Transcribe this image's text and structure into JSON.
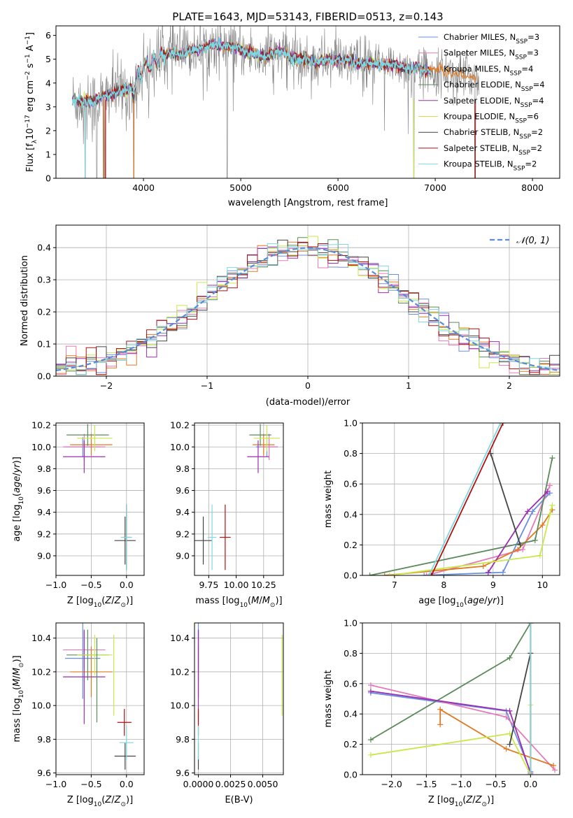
{
  "colors": {
    "Chabrier MILES": "#6a8fe0",
    "Salpeter MILES": "#e47ab8",
    "Kroupa MILES": "#e0781e",
    "Chabrier ELODIE": "#5a8a5a",
    "Salpeter ELODIE": "#9a2fb0",
    "Kroupa ELODIE": "#c8e84a",
    "Chabrier STELIB": "#444444",
    "Salpeter STELIB": "#b01010",
    "Kroupa STELIB": "#7ed8e0",
    "gaussian": "#5a8ad8",
    "grid": "#b0b0b0",
    "axis": "#000000"
  },
  "chart_data": [
    {
      "id": "spectrum",
      "type": "line",
      "title": "PLATE=1643, MJD=53143, FIBERID=0513, z=0.143",
      "xlabel": "wavelength [Angstrom, rest frame]",
      "ylabel": "Flux [fλ10⁻¹⁷ erg cm⁻² s⁻¹ A⁻¹]",
      "xlim": [
        3100,
        8280
      ],
      "ylim": [
        0,
        6.4
      ],
      "xticks": [
        4000,
        5000,
        6000,
        7000,
        8000
      ],
      "yticks": [
        0,
        1,
        2,
        3,
        4,
        5,
        6
      ],
      "grid": false,
      "legend_position": "top-right",
      "legend": [
        {
          "name": "Chabrier MILES, N_SSP=3",
          "label_main": "Chabrier MILES, N",
          "sub": "SSP",
          "suffix": "=3",
          "model": "Chabrier MILES"
        },
        {
          "name": "Salpeter MILES, N_SSP=3",
          "label_main": "Salpeter MILES, N",
          "sub": "SSP",
          "suffix": "=3",
          "model": "Salpeter MILES"
        },
        {
          "name": "Kroupa MILES, N_SSP=4",
          "label_main": "Kroupa MILES, N",
          "sub": "SSP",
          "suffix": "=4",
          "model": "Kroupa MILES"
        },
        {
          "name": "Chabrier ELODIE, N_SSP=4",
          "label_main": "Chabrier ELODIE, N",
          "sub": "SSP",
          "suffix": "=4",
          "model": "Chabrier ELODIE"
        },
        {
          "name": "Salpeter ELODIE, N_SSP=4",
          "label_main": "Salpeter ELODIE, N",
          "sub": "SSP",
          "suffix": "=4",
          "model": "Salpeter ELODIE"
        },
        {
          "name": "Kroupa ELODIE, N_SSP=6",
          "label_main": "Kroupa ELODIE, N",
          "sub": "SSP",
          "suffix": "=6",
          "model": "Kroupa ELODIE"
        },
        {
          "name": "Chabrier STELIB, N_SSP=2",
          "label_main": "Chabrier STELIB, N",
          "sub": "SSP",
          "suffix": "=2",
          "model": "Chabrier STELIB"
        },
        {
          "name": "Salpeter STELIB, N_SSP=2",
          "label_main": "Salpeter STELIB, N",
          "sub": "SSP",
          "suffix": "=2",
          "model": "Salpeter STELIB"
        },
        {
          "name": "Kroupa STELIB, N_SSP=2",
          "label_main": "Kroupa STELIB, N",
          "sub": "SSP",
          "suffix": "=2",
          "model": "Kroupa STELIB"
        }
      ],
      "continuum_points": {
        "x": [
          3270,
          3330,
          3400,
          3500,
          3600,
          3700,
          3800,
          3860,
          3900,
          3950,
          4000,
          4100,
          4200,
          4300,
          4400,
          4600,
          4800,
          5000,
          5200,
          5400,
          5600,
          5800,
          6000,
          6200,
          6400,
          6600,
          6800,
          7000,
          7200,
          7400,
          7600,
          7800,
          8000,
          8200
        ],
        "y": [
          3.3,
          3.2,
          3.3,
          3.2,
          3.5,
          3.6,
          3.7,
          3.6,
          3.8,
          4.3,
          4.6,
          4.9,
          5.1,
          5.3,
          5.2,
          5.5,
          5.6,
          5.4,
          5.1,
          5.3,
          5.0,
          4.9,
          5.0,
          4.85,
          4.8,
          4.75,
          4.6,
          4.55,
          4.4,
          4.3,
          4.1,
          4.05,
          3.95,
          3.9
        ]
      },
      "observed_noise_amplitude": 0.9,
      "notable_absorption_lines_x": [
        3400,
        3520,
        3590,
        3605,
        3900,
        4860,
        6780,
        7410
      ]
    },
    {
      "id": "residuals",
      "type": "histogram",
      "xlabel": "(data-model)/error",
      "ylabel": "Normed distribution",
      "xlim": [
        -2.5,
        2.5
      ],
      "ylim": [
        0,
        0.47
      ],
      "xticks": [
        -2,
        -1,
        0,
        1,
        2
      ],
      "yticks": [
        0.0,
        0.1,
        0.2,
        0.3,
        0.4
      ],
      "grid": true,
      "legend_position": "top-right",
      "legend": [
        {
          "name": "N(0, 1)",
          "text": "𝒩(0, 1)"
        }
      ],
      "bin_width": 0.1,
      "gaussian": {
        "mean": 0,
        "sigma": 1,
        "label": "N(0, 1)"
      }
    },
    {
      "id": "age-vs-Z",
      "type": "errorbar",
      "xlabel": "Z [log10(Z/Z⊙)]",
      "ylabel": "age [log10(age/yr)]",
      "xlim": [
        -1.0,
        0.25
      ],
      "ylim": [
        8.82,
        10.22
      ],
      "xticks": [
        -1.0,
        -0.5,
        0.0
      ],
      "yticks": [
        9.0,
        9.2,
        9.4,
        9.6,
        9.8,
        10.0,
        10.2
      ],
      "grid": true,
      "points": [
        {
          "model": "Chabrier MILES",
          "x": -0.62,
          "y": 10.0,
          "xerr": 0.25,
          "yerr": 0.09
        },
        {
          "model": "Salpeter MILES",
          "x": -0.6,
          "y": 10.0,
          "xerr": 0.3,
          "yerr": 0.12
        },
        {
          "model": "Kroupa MILES",
          "x": -0.5,
          "y": 10.02,
          "xerr": 0.3,
          "yerr": 0.1
        },
        {
          "model": "Chabrier ELODIE",
          "x": -0.55,
          "y": 10.11,
          "xerr": 0.3,
          "yerr": 0.1
        },
        {
          "model": "Salpeter ELODIE",
          "x": -0.6,
          "y": 9.91,
          "xerr": 0.3,
          "yerr": 0.15
        },
        {
          "model": "Kroupa ELODIE",
          "x": -0.45,
          "y": 10.08,
          "xerr": 0.25,
          "yerr": 0.12
        },
        {
          "model": "Chabrier STELIB",
          "x": -0.02,
          "y": 9.14,
          "xerr": 0.15,
          "yerr": 0.22
        },
        {
          "model": "Salpeter STELIB",
          "x": 0.0,
          "y": 9.17,
          "xerr": 0.05,
          "yerr": 0.3
        },
        {
          "model": "Kroupa STELIB",
          "x": 0.0,
          "y": 9.17,
          "xerr": 0.08,
          "yerr": 0.3
        }
      ]
    },
    {
      "id": "age-vs-mass",
      "type": "errorbar",
      "xlabel": "mass [log10(M/M⊙)]",
      "ylabel": "",
      "xlim": [
        9.62,
        10.43
      ],
      "ylim": [
        8.82,
        10.22
      ],
      "xticks": [
        9.75,
        10.0,
        10.25
      ],
      "ytick_labels": [
        "9.0",
        "9.2",
        "9.4",
        "9.6",
        "9.8",
        "10.0",
        "10.2"
      ],
      "xtick_labels": [
        "9.75",
        "10.00",
        "10.25"
      ],
      "yticks": [
        9.0,
        9.2,
        9.4,
        9.6,
        9.8,
        10.0,
        10.2
      ],
      "grid": true,
      "points": [
        {
          "model": "Chabrier MILES",
          "x": 10.28,
          "y": 10.0,
          "xerr": 0.1,
          "yerr": 0.09
        },
        {
          "model": "Salpeter MILES",
          "x": 10.3,
          "y": 10.0,
          "xerr": 0.08,
          "yerr": 0.12
        },
        {
          "model": "Kroupa MILES",
          "x": 10.25,
          "y": 10.02,
          "xerr": 0.1,
          "yerr": 0.1
        },
        {
          "model": "Chabrier ELODIE",
          "x": 10.22,
          "y": 10.11,
          "xerr": 0.1,
          "yerr": 0.1
        },
        {
          "model": "Salpeter ELODIE",
          "x": 10.2,
          "y": 9.91,
          "xerr": 0.1,
          "yerr": 0.15
        },
        {
          "model": "Kroupa ELODIE",
          "x": 10.28,
          "y": 10.08,
          "xerr": 0.12,
          "yerr": 0.12
        },
        {
          "model": "Chabrier STELIB",
          "x": 9.7,
          "y": 9.14,
          "xerr": 0.08,
          "yerr": 0.22
        },
        {
          "model": "Salpeter STELIB",
          "x": 9.9,
          "y": 9.17,
          "xerr": 0.05,
          "yerr": 0.3
        },
        {
          "model": "Kroupa STELIB",
          "x": 9.78,
          "y": 9.17,
          "xerr": 0.04,
          "yerr": 0.3
        }
      ]
    },
    {
      "id": "massweight-vs-age",
      "type": "line",
      "xlabel": "age [log10(age/yr)]",
      "ylabel": "mass weight",
      "xlim": [
        6.35,
        10.35
      ],
      "ylim": [
        0,
        1.0
      ],
      "xticks": [
        7,
        8,
        9,
        10
      ],
      "yticks": [
        0.0,
        0.2,
        0.4,
        0.6,
        0.8,
        1.0
      ],
      "grid": true,
      "series": [
        {
          "model": "Chabrier MILES",
          "x": [
            7.6,
            9.2,
            9.8,
            10.15
          ],
          "y": [
            0.0,
            0.02,
            0.42,
            0.54
          ]
        },
        {
          "model": "Salpeter MILES",
          "x": [
            7.65,
            9.6,
            10.1,
            10.15
          ],
          "y": [
            0.0,
            0.17,
            0.55,
            0.59
          ]
        },
        {
          "model": "Kroupa MILES",
          "x": [
            6.8,
            8.8,
            9.5,
            10.0,
            10.2
          ],
          "y": [
            0.0,
            0.06,
            0.17,
            0.33,
            0.43
          ]
        },
        {
          "model": "Chabrier ELODIE",
          "x": [
            6.5,
            9.85,
            10.2
          ],
          "y": [
            0.0,
            0.23,
            0.77
          ]
        },
        {
          "model": "Salpeter ELODIE",
          "x": [
            8.9,
            9.7,
            10.1
          ],
          "y": [
            0.02,
            0.42,
            0.55
          ]
        },
        {
          "model": "Kroupa ELODIE",
          "x": [
            6.9,
            9.95,
            10.15,
            10.2
          ],
          "y": [
            0.0,
            0.13,
            0.4,
            0.46
          ]
        },
        {
          "model": "Chabrier STELIB",
          "x": [
            8.95,
            9.55
          ],
          "y": [
            0.8,
            0.2
          ]
        },
        {
          "model": "Salpeter STELIB",
          "x": [
            7.75,
            9.2
          ],
          "y": [
            0.0,
            1.0
          ]
        },
        {
          "model": "Kroupa STELIB",
          "x": [
            7.7,
            9.15
          ],
          "y": [
            0.0,
            1.0
          ]
        }
      ]
    },
    {
      "id": "mass-vs-Z",
      "type": "errorbar",
      "xlabel": "Z [log10(Z/Z⊙)]",
      "ylabel": "mass [log10(M/M⊙)]",
      "xlim": [
        -1.0,
        0.25
      ],
      "ylim": [
        9.59,
        10.49
      ],
      "xticks": [
        -1.0,
        -0.5,
        0.0
      ],
      "yticks": [
        9.6,
        9.8,
        10.0,
        10.2,
        10.4
      ],
      "grid": true,
      "points": [
        {
          "model": "Chabrier MILES",
          "x": -0.62,
          "y": 10.28,
          "xerr": 0.25,
          "yerr": 0.24
        },
        {
          "model": "Salpeter MILES",
          "x": -0.6,
          "y": 10.33,
          "xerr": 0.3,
          "yerr": 0.11
        },
        {
          "model": "Kroupa MILES",
          "x": -0.5,
          "y": 10.2,
          "xerr": 0.3,
          "yerr": 0.15
        },
        {
          "model": "Chabrier ELODIE",
          "x": -0.55,
          "y": 10.3,
          "xerr": 0.3,
          "yerr": 0.15
        },
        {
          "model": "Salpeter ELODIE",
          "x": -0.6,
          "y": 10.17,
          "xerr": 0.3,
          "yerr": 0.28
        },
        {
          "model": "Kroupa ELODIE",
          "x": -0.45,
          "y": 10.3,
          "xerr": 0.25,
          "yerr": 0.12
        },
        {
          "model": "Chabrier ELODIE",
          "x": -0.42,
          "y": 10.15,
          "xerr": 0.0,
          "yerr": 0.25
        },
        {
          "model": "Kroupa ELODIE",
          "x": -0.18,
          "y": 10.18,
          "xerr": 0.0,
          "yerr": 0.24
        },
        {
          "model": "Chabrier STELIB",
          "x": -0.02,
          "y": 9.7,
          "xerr": 0.15,
          "yerr": 0.08
        },
        {
          "model": "Salpeter STELIB",
          "x": -0.03,
          "y": 9.9,
          "xerr": 0.1,
          "yerr": 0.08
        },
        {
          "model": "Kroupa STELIB",
          "x": 0.0,
          "y": 9.78,
          "xerr": 0.1,
          "yerr": 0.1
        }
      ]
    },
    {
      "id": "mass-vs-EBV",
      "type": "errorbar",
      "xlabel": "E(B-V)",
      "ylabel": "",
      "xlim": [
        -0.0003,
        0.0066
      ],
      "ylim": [
        9.59,
        10.49
      ],
      "xticks": [
        0.0,
        0.0025,
        0.005
      ],
      "xtick_labels": [
        "0.0000",
        "0.0025",
        "0.0050"
      ],
      "yticks": [
        9.6,
        9.8,
        10.0,
        10.2,
        10.4
      ],
      "grid": true,
      "points": [
        {
          "model": "Chabrier MILES",
          "x": 0.0,
          "y": 10.28,
          "xerr": 0,
          "yerr": 0.24
        },
        {
          "model": "Salpeter MILES",
          "x": 0.0,
          "y": 10.33,
          "xerr": 0,
          "yerr": 0.11
        },
        {
          "model": "Kroupa MILES",
          "x": 0.0,
          "y": 10.2,
          "xerr": 0,
          "yerr": 0.15
        },
        {
          "model": "Chabrier ELODIE",
          "x": 0.0,
          "y": 10.3,
          "xerr": 0,
          "yerr": 0.15
        },
        {
          "model": "Salpeter ELODIE",
          "x": 0.0,
          "y": 10.17,
          "xerr": 0,
          "yerr": 0.28
        },
        {
          "model": "Kroupa ELODIE",
          "x": 0.0065,
          "y": 10.18,
          "xerr": 0,
          "yerr": 0.24
        },
        {
          "model": "Chabrier STELIB",
          "x": 0.0,
          "y": 9.7,
          "xerr": 0,
          "yerr": 0.08
        },
        {
          "model": "Salpeter STELIB",
          "x": 0.0,
          "y": 9.9,
          "xerr": 0,
          "yerr": 0.08
        },
        {
          "model": "Kroupa STELIB",
          "x": 0.0,
          "y": 9.78,
          "xerr": 0,
          "yerr": 0.1
        }
      ]
    },
    {
      "id": "massweight-vs-Z",
      "type": "line",
      "xlabel": "Z [log10(Z/Z⊙)]",
      "ylabel": "mass weight",
      "xlim": [
        -2.42,
        0.42
      ],
      "ylim": [
        0,
        1.0
      ],
      "xticks": [
        -2.0,
        -1.5,
        -1.0,
        -0.5,
        0.0
      ],
      "yticks": [
        0.0,
        0.2,
        0.4,
        0.6,
        0.8,
        1.0
      ],
      "grid": true,
      "series": [
        {
          "model": "Chabrier MILES",
          "x": [
            -2.3,
            -0.35,
            0.0
          ],
          "y": [
            0.54,
            0.42,
            0.02
          ]
        },
        {
          "model": "Salpeter MILES",
          "x": [
            -2.3,
            -0.35,
            0.35
          ],
          "y": [
            0.59,
            0.38,
            0.03
          ]
        },
        {
          "model": "Kroupa MILES",
          "x": [
            -1.3,
            -1.3,
            -0.35,
            0.33
          ],
          "y": [
            0.33,
            0.43,
            0.17,
            0.06
          ]
        },
        {
          "model": "Chabrier ELODIE",
          "x": [
            -2.3,
            -0.3,
            0.0
          ],
          "y": [
            0.23,
            0.77,
            1.0
          ]
        },
        {
          "model": "Salpeter ELODIE",
          "x": [
            -2.3,
            -0.3,
            0.0
          ],
          "y": [
            0.55,
            0.42,
            0.01
          ]
        },
        {
          "model": "Kroupa ELODIE",
          "x": [
            -2.3,
            -0.3,
            0.0,
            0.0
          ],
          "y": [
            0.13,
            0.27,
            0.0,
            0.46
          ]
        },
        {
          "model": "Chabrier STELIB",
          "x": [
            -0.3,
            0.0
          ],
          "y": [
            0.2,
            0.8
          ]
        },
        {
          "model": "Salpeter STELIB",
          "x": [
            0.0,
            0.0
          ],
          "y": [
            0.0,
            1.0
          ]
        },
        {
          "model": "Kroupa STELIB",
          "x": [
            0.0,
            0.0
          ],
          "y": [
            0.0,
            1.0
          ]
        }
      ]
    }
  ]
}
